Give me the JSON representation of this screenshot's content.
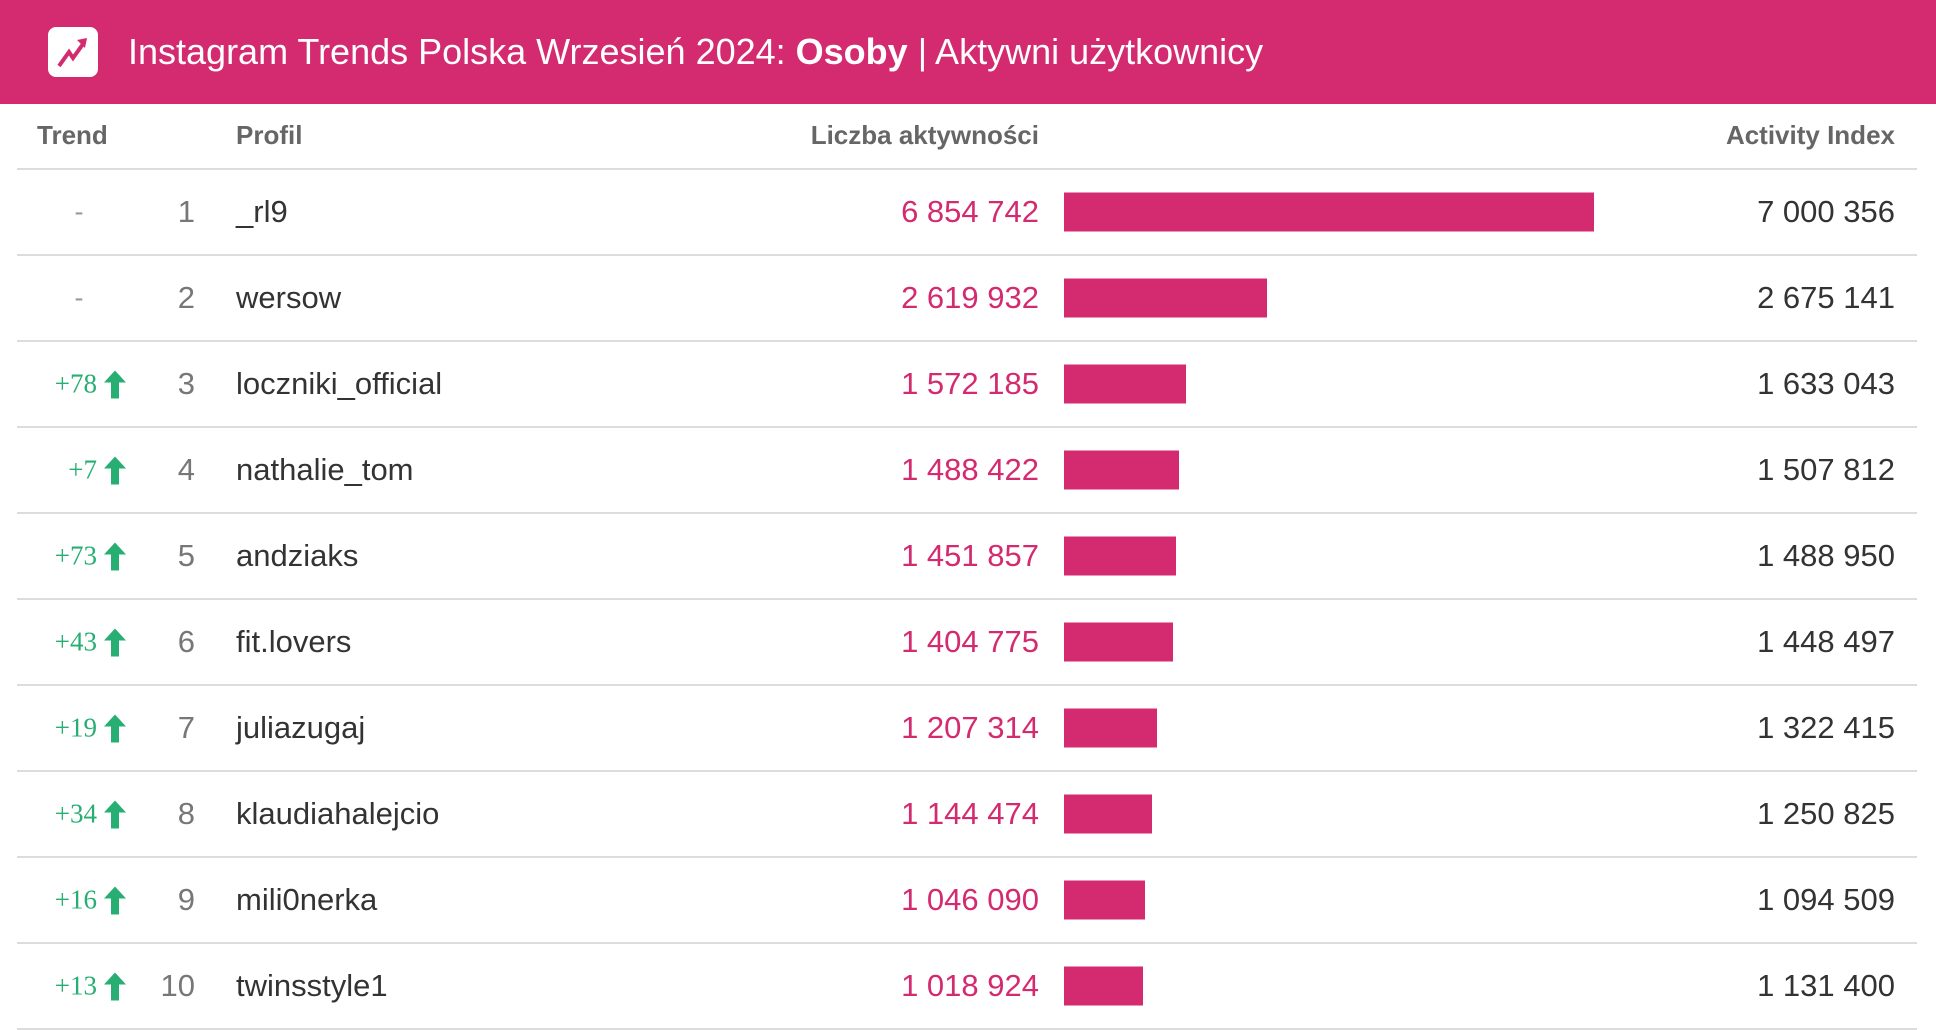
{
  "header": {
    "title_prefix": "Instagram Trends Polska Wrzesień 2024: ",
    "title_bold": "Osoby",
    "title_suffix": " | Aktywni użytkownicy",
    "icon": "trending-up-icon",
    "color": "#d42a6f"
  },
  "columns": {
    "trend": "Trend",
    "profile": "Profil",
    "count": "Liczba aktywności",
    "index": "Activity Index"
  },
  "max_count": 6854742,
  "rows": [
    {
      "trend": "-",
      "up": false,
      "rank": "1",
      "profile": "_rl9",
      "count": "6 854 742",
      "count_value": 6854742,
      "index": "7 000 356"
    },
    {
      "trend": "-",
      "up": false,
      "rank": "2",
      "profile": "wersow",
      "count": "2 619 932",
      "count_value": 2619932,
      "index": "2 675 141"
    },
    {
      "trend": "+78",
      "up": true,
      "rank": "3",
      "profile": "loczniki_official",
      "count": "1 572 185",
      "count_value": 1572185,
      "index": "1 633 043"
    },
    {
      "trend": "+7",
      "up": true,
      "rank": "4",
      "profile": "nathalie_tom",
      "count": "1 488 422",
      "count_value": 1488422,
      "index": "1 507 812"
    },
    {
      "trend": "+73",
      "up": true,
      "rank": "5",
      "profile": "andziaks",
      "count": "1 451 857",
      "count_value": 1451857,
      "index": "1 488 950"
    },
    {
      "trend": "+43",
      "up": true,
      "rank": "6",
      "profile": "fit.lovers",
      "count": "1 404 775",
      "count_value": 1404775,
      "index": "1 448 497"
    },
    {
      "trend": "+19",
      "up": true,
      "rank": "7",
      "profile": "juliazugaj",
      "count": "1 207 314",
      "count_value": 1207314,
      "index": "1 322 415"
    },
    {
      "trend": "+34",
      "up": true,
      "rank": "8",
      "profile": "klaudiahalejcio",
      "count": "1 144 474",
      "count_value": 1144474,
      "index": "1 250 825"
    },
    {
      "trend": "+16",
      "up": true,
      "rank": "9",
      "profile": "mili0nerka",
      "count": "1 046 090",
      "count_value": 1046090,
      "index": "1 094 509"
    },
    {
      "trend": "+13",
      "up": true,
      "rank": "10",
      "profile": "twinsstyle1",
      "count": "1 018 924",
      "count_value": 1018924,
      "index": "1 131 400"
    }
  ]
}
